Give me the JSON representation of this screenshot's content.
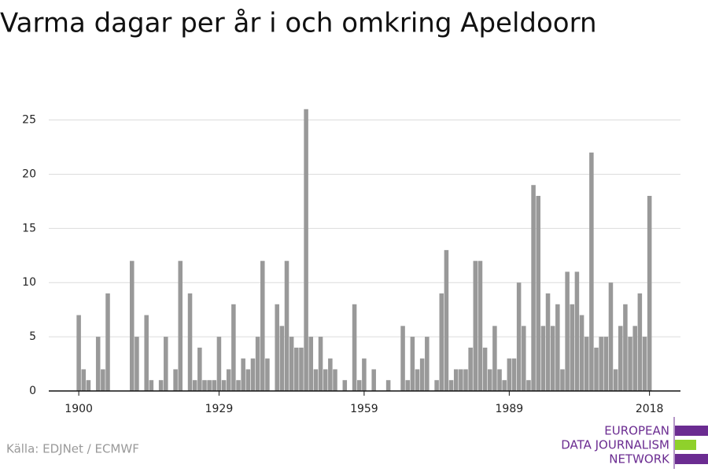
{
  "chart_data": {
    "type": "bar",
    "title": "Varma dagar per år i och omkring Apeldoorn",
    "source": "Källa: EDJNet / ECMWF",
    "logo": [
      "EUROPEAN",
      "DATA JOURNALISM",
      "NETWORK"
    ],
    "x": [
      1900,
      1901,
      1902,
      1903,
      1904,
      1905,
      1906,
      1907,
      1908,
      1909,
      1910,
      1911,
      1912,
      1913,
      1914,
      1915,
      1916,
      1917,
      1918,
      1919,
      1920,
      1921,
      1922,
      1923,
      1924,
      1925,
      1926,
      1927,
      1928,
      1929,
      1930,
      1931,
      1932,
      1933,
      1934,
      1935,
      1936,
      1937,
      1938,
      1939,
      1940,
      1941,
      1942,
      1943,
      1944,
      1945,
      1946,
      1947,
      1948,
      1949,
      1950,
      1951,
      1952,
      1953,
      1954,
      1955,
      1956,
      1957,
      1958,
      1959,
      1960,
      1961,
      1962,
      1963,
      1964,
      1965,
      1966,
      1967,
      1968,
      1969,
      1970,
      1971,
      1972,
      1973,
      1974,
      1975,
      1976,
      1977,
      1978,
      1979,
      1980,
      1981,
      1982,
      1983,
      1984,
      1985,
      1986,
      1987,
      1988,
      1989,
      1990,
      1991,
      1992,
      1993,
      1994,
      1995,
      1996,
      1997,
      1998,
      1999,
      2000,
      2001,
      2002,
      2003,
      2004,
      2005,
      2006,
      2007,
      2008,
      2009,
      2010,
      2011,
      2012,
      2013,
      2014,
      2015,
      2016,
      2017,
      2018
    ],
    "values": [
      7,
      2,
      1,
      0,
      5,
      2,
      9,
      0,
      0,
      0,
      0,
      12,
      5,
      0,
      7,
      1,
      0,
      1,
      5,
      0,
      2,
      12,
      0,
      9,
      1,
      4,
      1,
      1,
      1,
      5,
      1,
      2,
      8,
      1,
      3,
      2,
      3,
      5,
      12,
      3,
      0,
      8,
      6,
      12,
      5,
      4,
      4,
      26,
      5,
      2,
      5,
      2,
      3,
      2,
      0,
      1,
      0,
      8,
      1,
      3,
      0,
      2,
      0,
      0,
      1,
      0,
      0,
      6,
      1,
      5,
      2,
      3,
      5,
      0,
      1,
      9,
      13,
      1,
      2,
      2,
      2,
      4,
      12,
      12,
      4,
      2,
      6,
      2,
      1,
      3,
      3,
      10,
      6,
      1,
      19,
      18,
      6,
      9,
      6,
      8,
      2,
      11,
      8,
      11,
      7,
      5,
      22,
      4,
      5,
      5,
      10,
      2,
      6,
      8,
      5,
      6,
      9,
      5,
      18
    ],
    "color": "#999999",
    "xlim": [
      1893.8,
      2024.4
    ],
    "xticks": [
      1900,
      1929,
      1959,
      1989,
      2018
    ],
    "ylim": [
      0,
      27
    ],
    "yticks": [
      0,
      5,
      10,
      15,
      20,
      25
    ],
    "grid": true
  }
}
